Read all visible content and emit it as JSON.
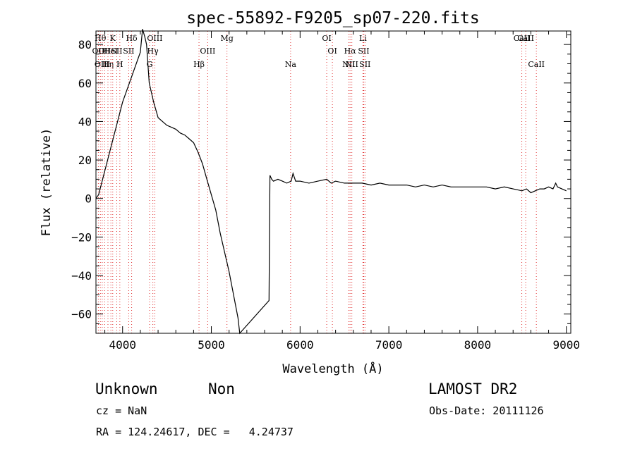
{
  "chart_data": {
    "type": "line",
    "title": "spec-55892-F9205_sp07-220.fits",
    "xlabel": "Wavelength (Å)",
    "ylabel": "Flux (relative)",
    "xlim": [
      3700,
      9050
    ],
    "ylim": [
      -70,
      87
    ],
    "x_ticks": [
      4000,
      5000,
      6000,
      7000,
      8000,
      9000
    ],
    "x_tick_labels": [
      "4000",
      "5000",
      "6000",
      "7000",
      "8000",
      "9000"
    ],
    "y_ticks": [
      -60,
      -40,
      -20,
      0,
      20,
      40,
      60,
      80
    ],
    "y_tick_labels": [
      "−60",
      "−40",
      "−20",
      "0",
      "20",
      "40",
      "60",
      "80"
    ],
    "grid": false,
    "series": [
      {
        "x": [
          3700,
          3730,
          4000,
          4200,
          4225,
          4250,
          4270,
          4300,
          4350,
          4400,
          4450,
          4500,
          4550,
          4600,
          4650,
          4700,
          4750,
          4800,
          4850,
          4900,
          4950,
          5000,
          5050,
          5100,
          5150,
          5200,
          5250,
          5300,
          5320,
          5650,
          5660,
          5680,
          5700,
          5750,
          5800,
          5850,
          5900,
          5920,
          5950,
          6000,
          6100,
          6200,
          6300,
          6350,
          6400,
          6500,
          6600,
          6700,
          6800,
          6900,
          7000,
          7100,
          7200,
          7300,
          7400,
          7500,
          7600,
          7700,
          7800,
          7900,
          8000,
          8100,
          8200,
          8300,
          8400,
          8500,
          8550,
          8600,
          8650,
          8700,
          8750,
          8800,
          8850,
          8880,
          8900,
          8950,
          9000
        ],
        "y": [
          0,
          2,
          50,
          76,
          88,
          84,
          80,
          60,
          50,
          42,
          40,
          38,
          37,
          36,
          34,
          33,
          31,
          29,
          24,
          18,
          10,
          2,
          -6,
          -18,
          -28,
          -38,
          -50,
          -62,
          -70,
          -53,
          12,
          10,
          9,
          10,
          9,
          8,
          9,
          13,
          9,
          9,
          8,
          9,
          10,
          8,
          9,
          8,
          8,
          8,
          7,
          8,
          7,
          7,
          7,
          6,
          7,
          6,
          7,
          6,
          6,
          6,
          6,
          6,
          5,
          6,
          5,
          4,
          5,
          3,
          4,
          5,
          5,
          6,
          5,
          8,
          6,
          5,
          4
        ]
      }
    ],
    "lines": [
      {
        "x": 3727,
        "label": "OII",
        "row": 2
      },
      {
        "x": 3750,
        "label": "Hθ",
        "row": 1
      },
      {
        "x": 3771,
        "label": "OIII",
        "row": 3
      },
      {
        "x": 3798,
        "label": "OII",
        "row": 2
      },
      {
        "x": 3835,
        "label": "Hη",
        "row": 3
      },
      {
        "x": 3868,
        "label": "HeI",
        "row": 2
      },
      {
        "x": 3889,
        "label": "K",
        "row": 1
      },
      {
        "x": 3934,
        "label": "SII",
        "row": 2
      },
      {
        "x": 3969,
        "label": "H",
        "row": 3
      },
      {
        "x": 4069,
        "label": "SII",
        "row": 2
      },
      {
        "x": 4102,
        "label": "Hδ",
        "row": 1
      },
      {
        "x": 4304,
        "label": "G",
        "row": 3
      },
      {
        "x": 4341,
        "label": "Hγ",
        "row": 2
      },
      {
        "x": 4363,
        "label": "OIII",
        "row": 1
      },
      {
        "x": 4861,
        "label": "Hβ",
        "row": 3
      },
      {
        "x": 4959,
        "label": "OIII",
        "row": 2
      },
      {
        "x": 5176,
        "label": "Mg",
        "row": 1
      },
      {
        "x": 5893,
        "label": "Na",
        "row": 3
      },
      {
        "x": 6300,
        "label": "OI",
        "row": 1
      },
      {
        "x": 6364,
        "label": "OI",
        "row": 2
      },
      {
        "x": 6548,
        "label": "NII",
        "row": 3
      },
      {
        "x": 6563,
        "label": "Hα",
        "row": 2
      },
      {
        "x": 6583,
        "label": "NII",
        "row": 3
      },
      {
        "x": 6708,
        "label": "Li",
        "row": 1
      },
      {
        "x": 6717,
        "label": "SII",
        "row": 2
      },
      {
        "x": 6731,
        "label": "SII",
        "row": 3
      },
      {
        "x": 8498,
        "label": "CaII",
        "row": 1
      },
      {
        "x": 8542,
        "label": "CaII",
        "row": 1
      },
      {
        "x": 8662,
        "label": "CaII",
        "row": 3
      }
    ],
    "line_color": "#e03030"
  },
  "info": {
    "class": "Unknown",
    "subclass": "Non",
    "survey": "LAMOST DR2",
    "cz": "cz = NaN",
    "obs_date": "Obs-Date: 20111126",
    "coords": "RA = 124.24617, DEC =   4.24737"
  }
}
